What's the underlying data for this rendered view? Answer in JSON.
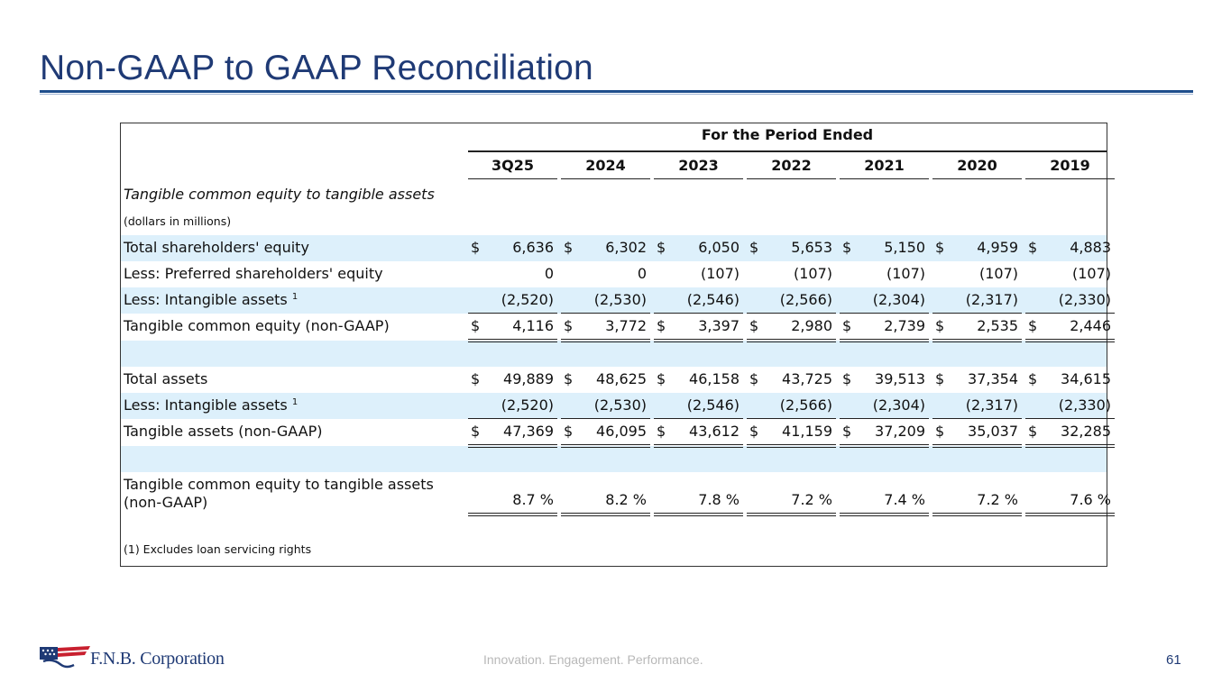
{
  "slide": {
    "title": "Non-GAAP to GAAP Reconciliation",
    "tagline": "Innovation. Engagement. Performance.",
    "page_number": "61",
    "company": "F.N.B. Corporation",
    "colors": {
      "title": "#1f3a75",
      "band": "#ddf0fb"
    }
  },
  "table": {
    "period_header": "For the Period Ended",
    "columns": [
      "3Q25",
      "2024",
      "2023",
      "2022",
      "2021",
      "2020",
      "2019"
    ],
    "section_title": "Tangible common equity to tangible assets",
    "units": "(dollars in millions)",
    "rows": {
      "total_equity": {
        "label": "Total shareholders' equity",
        "values": [
          "6,636",
          "6,302",
          "6,050",
          "5,653",
          "5,150",
          "4,959",
          "4,883"
        ]
      },
      "preferred": {
        "label": "Less: Preferred shareholders' equity",
        "values": [
          "0",
          "0",
          "(107)",
          "(107)",
          "(107)",
          "(107)",
          "(107)"
        ]
      },
      "intangibles_1": {
        "label": "Less: Intangible assets ",
        "footnote": "1",
        "values": [
          "(2,520)",
          "(2,530)",
          "(2,546)",
          "(2,566)",
          "(2,304)",
          "(2,317)",
          "(2,330)"
        ]
      },
      "tce": {
        "label": "Tangible common equity (non-GAAP)",
        "values": [
          "4,116",
          "3,772",
          "3,397",
          "2,980",
          "2,739",
          "2,535",
          "2,446"
        ]
      },
      "total_assets": {
        "label": "Total assets",
        "values": [
          "49,889",
          "48,625",
          "46,158",
          "43,725",
          "39,513",
          "37,354",
          "34,615"
        ]
      },
      "intangibles_2": {
        "label": "Less: Intangible assets ",
        "footnote": "1",
        "values": [
          "(2,520)",
          "(2,530)",
          "(2,546)",
          "(2,566)",
          "(2,304)",
          "(2,317)",
          "(2,330)"
        ]
      },
      "tangible_assets": {
        "label": "Tangible assets (non-GAAP)",
        "values": [
          "47,369",
          "46,095",
          "43,612",
          "41,159",
          "37,209",
          "35,037",
          "32,285"
        ]
      },
      "ratio": {
        "label_line1": "Tangible common equity to tangible assets",
        "label_line2": "(non-GAAP)",
        "values": [
          "8.7 %",
          "8.2 %",
          "7.8 %",
          "7.2 %",
          "7.4 %",
          "7.2 %",
          "7.6 %"
        ]
      }
    },
    "dollar_sign": "$",
    "footnote": "(1) Excludes loan servicing rights"
  }
}
